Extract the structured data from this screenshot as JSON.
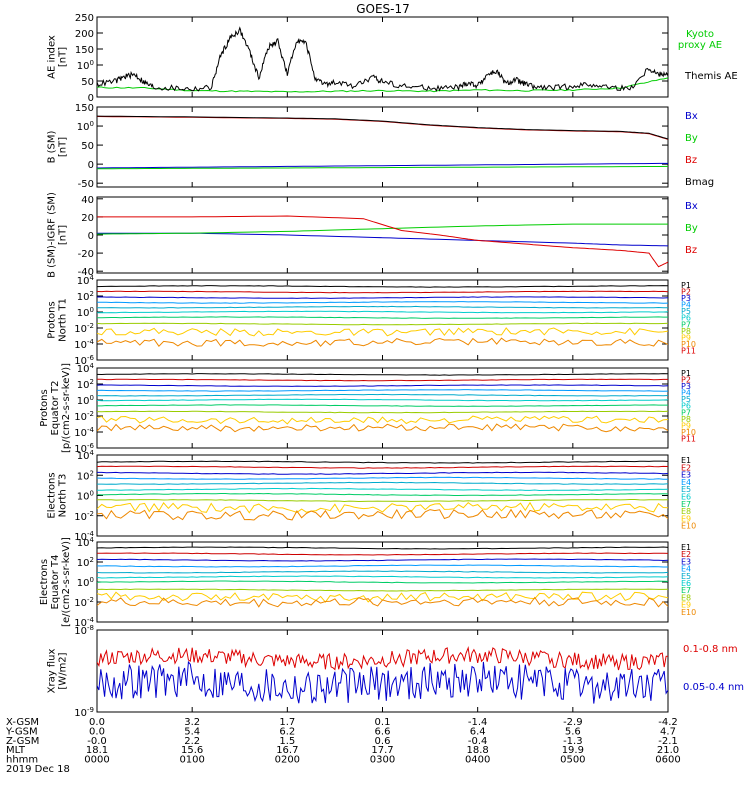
{
  "title": "GOES-17",
  "colors": {
    "black": "#000000",
    "green": "#00cc00",
    "blue": "#0000cc",
    "red": "#dd0000",
    "ch": [
      "#000000",
      "#cc0000",
      "#0000cc",
      "#0099ff",
      "#00aacc",
      "#00cccc",
      "#00cc66",
      "#99cc00",
      "#ffcc00",
      "#ee8800",
      "#dd0000",
      "#aa0000"
    ]
  },
  "chart_data": [
    {
      "id": "ae",
      "type": "line",
      "ylabel": [
        "AE index",
        "[nT]"
      ],
      "ylim": [
        0,
        250
      ],
      "yticks": [
        "0",
        "50",
        "100",
        "150",
        "200",
        "250"
      ],
      "series": [
        {
          "name": "Kyoto proxy AE",
          "color": "#00cc00",
          "x": [
            0,
            0.5,
            1,
            1.5,
            2,
            2.5,
            3,
            3.5,
            4,
            4.5,
            5,
            5.5,
            6
          ],
          "y": [
            30,
            28,
            20,
            18,
            16,
            18,
            20,
            18,
            22,
            20,
            22,
            28,
            60
          ]
        },
        {
          "name": "Themis AE",
          "color": "#000000",
          "x": [
            0,
            0.2,
            0.3,
            0.4,
            0.5,
            0.6,
            0.8,
            1.0,
            1.2,
            1.3,
            1.4,
            1.5,
            1.6,
            1.7,
            1.8,
            1.9,
            2.0,
            2.1,
            2.2,
            2.3,
            2.4,
            2.5,
            2.7,
            2.9,
            3.0,
            3.2,
            3.4,
            3.6,
            3.8,
            3.9,
            4.0,
            4.1,
            4.2,
            4.3,
            4.4,
            4.5,
            4.6,
            4.8,
            5.0,
            5.2,
            5.4,
            5.6,
            5.8,
            5.9,
            6.0
          ],
          "y": [
            40,
            50,
            65,
            70,
            45,
            30,
            28,
            25,
            30,
            130,
            185,
            210,
            145,
            60,
            155,
            175,
            70,
            180,
            165,
            50,
            40,
            45,
            35,
            60,
            50,
            35,
            30,
            28,
            30,
            45,
            35,
            70,
            80,
            40,
            55,
            40,
            30,
            28,
            35,
            40,
            30,
            25,
            90,
            70,
            75
          ]
        }
      ],
      "legend": [
        "Kyoto",
        "proxy AE",
        "Themis AE"
      ]
    },
    {
      "id": "bsm",
      "type": "line",
      "ylabel": [
        "B (SM)",
        "[nT]"
      ],
      "ylim": [
        -60,
        150
      ],
      "yticks": [
        "-50",
        "0",
        "50",
        "100",
        "150"
      ],
      "series": [
        {
          "name": "Bx",
          "color": "#0000cc",
          "x": [
            0,
            1,
            2,
            3,
            4,
            5,
            6
          ],
          "y": [
            -10,
            -8,
            -6,
            -4,
            -2,
            0,
            2
          ]
        },
        {
          "name": "By",
          "color": "#00cc00",
          "x": [
            0,
            1,
            2,
            3,
            4,
            5,
            6
          ],
          "y": [
            -12,
            -11,
            -10,
            -9,
            -8,
            -7,
            -6
          ]
        },
        {
          "name": "Bz",
          "color": "#dd0000",
          "x": [
            0,
            1,
            2,
            2.5,
            3,
            3.5,
            4,
            4.5,
            5,
            5.5,
            5.8,
            6
          ],
          "y": [
            125,
            123,
            120,
            118,
            112,
            102,
            95,
            90,
            87,
            85,
            80,
            65
          ]
        },
        {
          "name": "Bmag",
          "color": "#000000",
          "x": [
            0,
            1,
            2,
            2.5,
            3,
            3.5,
            4,
            4.5,
            5,
            5.5,
            5.8,
            6
          ],
          "y": [
            126,
            124,
            121,
            119,
            113,
            103,
            96,
            91,
            88,
            86,
            81,
            66
          ]
        }
      ],
      "legend": [
        "Bx",
        "By",
        "Bz",
        "Bmag"
      ]
    },
    {
      "id": "bigrf",
      "type": "line",
      "ylabel": [
        "B (SM)-IGRF (SM)",
        "[nT]"
      ],
      "ylim": [
        -42,
        42
      ],
      "yticks": [
        "-40",
        "-20",
        "0",
        "20",
        "40"
      ],
      "series": [
        {
          "name": "Bx",
          "color": "#0000cc",
          "x": [
            0,
            1,
            2,
            3,
            4,
            5,
            5.5,
            6
          ],
          "y": [
            2,
            2,
            0,
            -3,
            -6,
            -9,
            -11,
            -12
          ]
        },
        {
          "name": "By",
          "color": "#00cc00",
          "x": [
            0,
            1,
            2,
            3,
            4,
            5,
            5.5,
            6
          ],
          "y": [
            1,
            2,
            4,
            7,
            10,
            12,
            12,
            12
          ]
        },
        {
          "name": "Bz",
          "color": "#dd0000",
          "x": [
            0,
            1,
            2,
            2.8,
            3.2,
            3.6,
            4,
            4.5,
            5,
            5.5,
            5.8,
            5.9,
            6
          ],
          "y": [
            20,
            20,
            21,
            18,
            5,
            0,
            -6,
            -10,
            -14,
            -17,
            -20,
            -35,
            -30
          ]
        }
      ],
      "legend": [
        "Bx",
        "By",
        "Bz"
      ]
    },
    {
      "id": "p_t1",
      "type": "line",
      "log": true,
      "ylabel": [
        "Protons",
        "North T1"
      ],
      "ylim": [
        -6,
        4
      ],
      "yticks": [
        "10-6",
        "10-4",
        "10-2",
        "100",
        "102",
        "104"
      ],
      "levels": [
        3.2,
        2.5,
        1.8,
        1.2,
        0.6,
        0.0,
        -0.7,
        -1.5,
        -2.5,
        -3.8
      ],
      "legend": [
        "P1",
        "P2",
        "P3",
        "P4",
        "P5",
        "P6",
        "P7",
        "P8",
        "P9",
        "P10",
        "P11"
      ]
    },
    {
      "id": "p_t2",
      "type": "line",
      "log": true,
      "ylabel": [
        "Protons",
        "Equator T2",
        "[p/(cm2-s-sr-keV)]"
      ],
      "ylim": [
        -6,
        4
      ],
      "yticks": [
        "10-6",
        "10-4",
        "10-2",
        "100",
        "102",
        "104"
      ],
      "levels": [
        3.2,
        2.5,
        1.8,
        1.2,
        0.6,
        0.0,
        -0.7,
        -1.5,
        -2.5,
        -3.5
      ],
      "legend": [
        "P1",
        "P2",
        "P3",
        "P4",
        "P5",
        "P6",
        "P7",
        "P8",
        "P9",
        "P10",
        "P11"
      ]
    },
    {
      "id": "e_t3",
      "type": "line",
      "log": true,
      "ylabel": [
        "Electrons",
        "North T3"
      ],
      "ylim": [
        -4,
        4
      ],
      "yticks": [
        "10-4",
        "10-2",
        "100",
        "102",
        "104"
      ],
      "levels": [
        3.3,
        2.8,
        2.2,
        1.7,
        1.2,
        0.6,
        0.1,
        -0.5,
        -1.2,
        -1.9
      ],
      "legend": [
        "E1",
        "E2",
        "E3",
        "E4",
        "E5",
        "E6",
        "E7",
        "E8",
        "E9",
        "E10"
      ]
    },
    {
      "id": "e_t4",
      "type": "line",
      "log": true,
      "ylabel": [
        "Electrons",
        "Equator T4",
        "[e/(cm2-s-sr-keV)]"
      ],
      "ylim": [
        -4,
        4
      ],
      "yticks": [
        "10-4",
        "10-2",
        "100",
        "102",
        "104"
      ],
      "levels": [
        3.4,
        2.8,
        2.2,
        1.6,
        1.0,
        0.5,
        0.0,
        -0.8,
        -1.5,
        -2.0
      ],
      "legend": [
        "E1",
        "E2",
        "E3",
        "E4",
        "E5",
        "E6",
        "E7",
        "E8",
        "E9",
        "E10"
      ]
    },
    {
      "id": "xray",
      "type": "line",
      "log": true,
      "ylabel": [
        "Xray flux",
        "[W/m2]"
      ],
      "ylim": [
        -9,
        -8
      ],
      "yticks": [
        "10-9",
        "10-8"
      ],
      "series": [
        {
          "name": "0.1-0.8 nm",
          "color": "#dd0000",
          "level": -8.35
        },
        {
          "name": "0.05-0.4 nm",
          "color": "#0000cc",
          "level": -8.65
        }
      ],
      "legend": [
        "0.1-0.8 nm",
        "0.05-0.4 nm"
      ]
    }
  ],
  "xaxis": {
    "ticks": [
      0,
      1,
      2,
      3,
      4,
      5,
      6
    ],
    "rows": [
      {
        "label": "X-GSM",
        "values": [
          "0.0",
          "3.2",
          "1.7",
          "0.1",
          "-1.4",
          "-2.9",
          "-4.2"
        ]
      },
      {
        "label": "Y-GSM",
        "values": [
          "0.0",
          "5.4",
          "6.2",
          "6.6",
          "6.4",
          "5.6",
          "4.7"
        ]
      },
      {
        "label": "Z-GSM",
        "values": [
          "-0.0",
          "2.2",
          "1.5",
          "0.6",
          "-0.4",
          "-1.3",
          "-2.1"
        ]
      },
      {
        "label": "MLT",
        "values": [
          "18.1",
          "15.6",
          "16.7",
          "17.7",
          "18.8",
          "19.9",
          "21.0"
        ]
      },
      {
        "label": "hhmm",
        "values": [
          "0000",
          "0100",
          "0200",
          "0300",
          "0400",
          "0500",
          "0600"
        ]
      }
    ],
    "date": "2019 Dec 18"
  }
}
